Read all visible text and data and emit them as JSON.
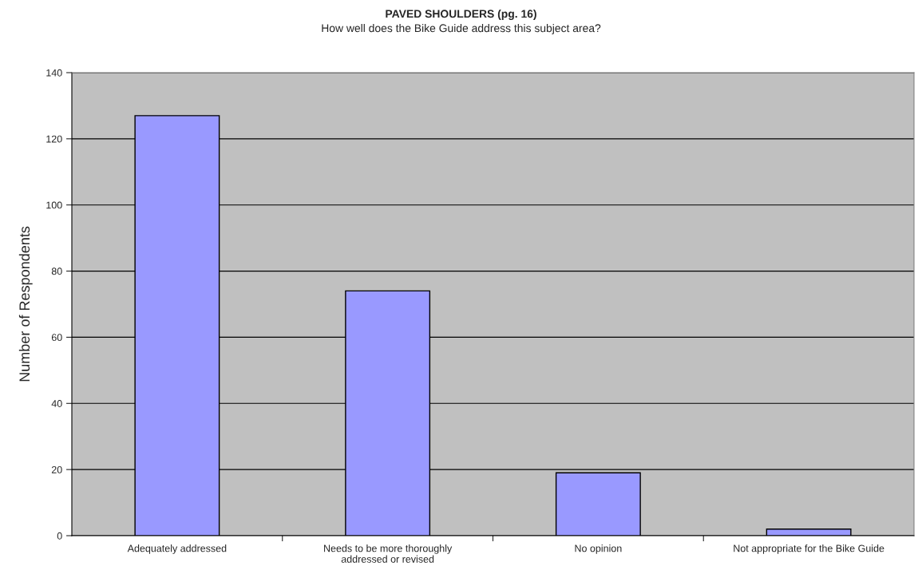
{
  "chart_data": {
    "type": "bar",
    "title": "PAVED SHOULDERS (pg. 16)",
    "subtitle": "How well does the Bike Guide address this subject area?",
    "ylabel": "Number of Respondents",
    "categories": [
      "Adequately addressed",
      "Needs to be more thoroughly\naddressed or revised",
      "No opinion",
      "Not appropriate for the Bike Guide"
    ],
    "values": [
      127,
      74,
      19,
      2
    ],
    "color": "#9999ff",
    "ylim": [
      0,
      140
    ],
    "yticks": [
      0,
      20,
      40,
      60,
      80,
      100,
      120,
      140
    ],
    "grid": "y"
  }
}
